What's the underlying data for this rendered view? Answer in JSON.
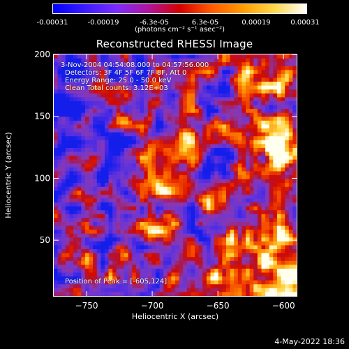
{
  "colorbar": {
    "ticks": [
      "-0.00031",
      "-0.00019",
      "-6.3e-05",
      "6.3e-05",
      "0.00019",
      "0.00031"
    ],
    "unit_label": "(photons cm⁻² s⁻¹ asec⁻²)",
    "stops": [
      "#0000ff",
      "#3a1cff",
      "#7b2cff",
      "#b0149f",
      "#d20000",
      "#ff5a00",
      "#ff9c00",
      "#ffd84a",
      "#ffffff"
    ]
  },
  "title": "Reconstructed RHESSI Image",
  "info": {
    "time_range": "3-Nov-2004 04:54:08.000 to 04:57:56.000",
    "detectors": "Detectors: 3F 4F 5F 6F 7F 8F, Att 0",
    "energy": "Energy Range: 25.0 - 50.0 keV",
    "clean": "Clean    Total counts: 3.12E+03",
    "peak": "Position of Peak = [-605,124]"
  },
  "axes": {
    "xlabel": "Heliocentric X (arcsec)",
    "ylabel": "Heliocentric Y (arcsec)",
    "xlim": [
      -775,
      -590
    ],
    "ylim": [
      5,
      200
    ],
    "xticks": [
      -750,
      -700,
      -650,
      -600
    ],
    "xticklabels": [
      "−750",
      "−700",
      "−650",
      "−600"
    ],
    "yticks": [
      50,
      100,
      150,
      200
    ],
    "yticklabels": [
      "50",
      "100",
      "150",
      "200"
    ]
  },
  "timestamp": "4-May-2022 18:36",
  "map": {
    "peak": [
      -605,
      124
    ]
  }
}
